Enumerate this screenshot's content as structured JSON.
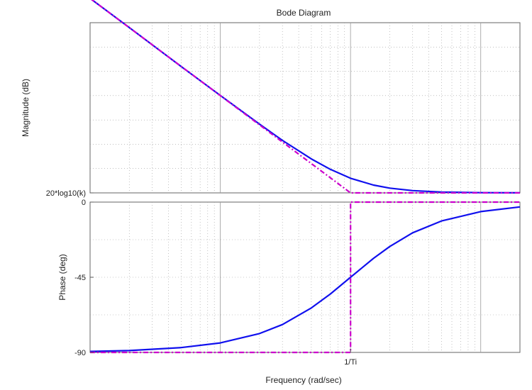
{
  "chart_data": {
    "type": "line",
    "title": "Bode Diagram",
    "xlabel": "Frequency  (rad/sec)",
    "x_scale": "log",
    "x_ticks": [
      {
        "value": 1,
        "label": "1/Ti"
      }
    ],
    "xlim": [
      0.01,
      20
    ],
    "grid": true,
    "colors": {
      "exact": "#1010ee",
      "asymptote": "#cc00cc",
      "axes": "#555555",
      "grid": "#9a9a9a"
    },
    "subplots": [
      {
        "name": "magnitude",
        "ylabel": "Magnitude (dB)",
        "ylim": [
          0,
          35
        ],
        "y_ticks": [
          {
            "value": 0,
            "label": "20*log10(k)"
          }
        ],
        "series": [
          {
            "style": "solid",
            "x": [
              0.01,
              0.02,
              0.05,
              0.1,
              0.2,
              0.3,
              0.5,
              0.7,
              1,
              1.5,
              2,
              3,
              5,
              10,
              20
            ],
            "y": [
              40.0,
              34.0,
              26.0,
              20.04,
              14.15,
              10.79,
              6.99,
              4.84,
              3.01,
              1.6,
              0.97,
              0.46,
              0.17,
              0.04,
              0.01
            ]
          },
          {
            "style": "dashdot",
            "x": [
              0.01,
              1,
              20
            ],
            "y": [
              40,
              0,
              0
            ]
          }
        ]
      },
      {
        "name": "phase",
        "ylabel": "Phase (deg)",
        "ylim": [
          -90,
          0
        ],
        "y_ticks": [
          {
            "value": 0,
            "label": "0"
          },
          {
            "value": -45,
            "label": "-45"
          },
          {
            "value": -90,
            "label": "-90"
          }
        ],
        "series": [
          {
            "style": "solid",
            "x": [
              0.01,
              0.02,
              0.05,
              0.1,
              0.2,
              0.3,
              0.5,
              0.7,
              1,
              1.5,
              2,
              3,
              5,
              10,
              20
            ],
            "y": [
              -89.4,
              -88.9,
              -87.1,
              -84.3,
              -78.7,
              -73.3,
              -63.4,
              -55.0,
              -45.0,
              -33.7,
              -26.6,
              -18.4,
              -11.3,
              -5.7,
              -2.9
            ]
          },
          {
            "style": "dashdot",
            "x": [
              0.01,
              1,
              1,
              20
            ],
            "y": [
              -90,
              -90,
              0,
              0
            ]
          }
        ]
      }
    ]
  }
}
